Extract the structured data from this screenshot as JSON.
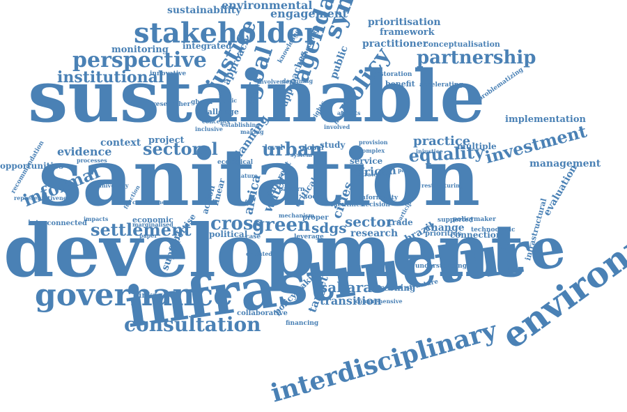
{
  "color": "#4a81b5",
  "words": [
    "sustainable",
    "sanitation",
    "development",
    "infrastructure",
    "environment",
    "governance",
    "interdisciplinary",
    "stakeholder",
    "perspective",
    "partnership",
    "synergies",
    "agenda",
    "goal",
    "policy",
    "justice",
    "consultation",
    "settlement",
    "sectoral",
    "urban",
    "equality",
    "investment",
    "informal",
    "green",
    "cross",
    "sdgs",
    "institutional",
    "sector",
    "saharan",
    "transition",
    "target",
    "practice",
    "africa",
    "african",
    "cities",
    "water",
    "sustainability",
    "environmental",
    "engagement",
    "prioritisation",
    "framework",
    "practitioner",
    "conceptualisation",
    "monitoring",
    "integrated",
    "approach",
    "knowledge",
    "public",
    "methodology",
    "restoration",
    "benefit",
    "accelerating",
    "problematizing",
    "implementation",
    "management",
    "evaluation",
    "infrastructural",
    "brazil",
    "change",
    "connection",
    "priorities",
    "research",
    "trade",
    "supported",
    "policymaker",
    "technocratic",
    "multiple",
    "service",
    "study",
    "global",
    "level",
    "context",
    "project",
    "evidence",
    "opportunities",
    "recommendation",
    "representativeness",
    "interconnected",
    "economic",
    "political",
    "support",
    "expertise",
    "linkage",
    "collaborative",
    "policymaking",
    "greening",
    "structure",
    "comprehensive",
    "understanding",
    "approaches",
    "challenge",
    "ghana",
    "planning",
    "action",
    "linear",
    "different",
    "case",
    "leverage",
    "financing",
    "informality",
    "decision",
    "identifies",
    "health",
    "innovative",
    "involvement",
    "designing",
    "initiative",
    "researcher",
    "inclusive",
    "processes",
    "ecological",
    "nature",
    "critical",
    "park",
    "injustice",
    "participants",
    "restructuring",
    "strategies",
    "pattern",
    "proper",
    "social",
    "paper",
    "university",
    "commitment",
    "function",
    "marginalised",
    "impacts",
    "mechanism",
    "concepts",
    "academic",
    "establishing",
    "making",
    "complex",
    "aspects",
    "involved",
    "provision",
    "conflict",
    "system",
    "oriented",
    "rights",
    "maker",
    "example"
  ]
}
